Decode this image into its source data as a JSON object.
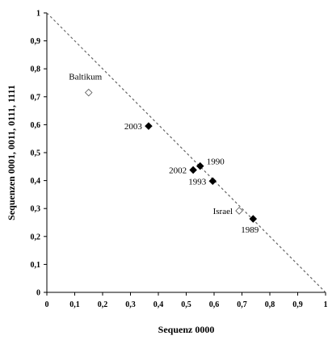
{
  "chart_data": {
    "type": "scatter",
    "xlabel": "Sequenz 0000",
    "ylabel": "Sequenzen 0001, 0011, 0111, 1111",
    "xlim": [
      0,
      1
    ],
    "ylim": [
      0,
      1
    ],
    "x_ticks": [
      "0",
      "0,1",
      "0,2",
      "0,3",
      "0,4",
      "0,5",
      "0,6",
      "0,7",
      "0,8",
      "0,9",
      "1"
    ],
    "y_ticks": [
      "0",
      "0,1",
      "0,2",
      "0,3",
      "0,4",
      "0,5",
      "0,6",
      "0,7",
      "0,8",
      "0,9",
      "1"
    ],
    "grid": false,
    "reference_line": {
      "style": "dashed",
      "from": [
        0,
        1
      ],
      "to": [
        1,
        0
      ]
    },
    "points": [
      {
        "label": "Baltikum",
        "x": 0.15,
        "y": 0.715,
        "marker": "open-diamond"
      },
      {
        "label": "2003",
        "x": 0.365,
        "y": 0.595,
        "marker": "filled-diamond"
      },
      {
        "label": "1990",
        "x": 0.55,
        "y": 0.452,
        "marker": "filled-diamond"
      },
      {
        "label": "2002",
        "x": 0.525,
        "y": 0.438,
        "marker": "filled-diamond"
      },
      {
        "label": "1993",
        "x": 0.595,
        "y": 0.398,
        "marker": "filled-diamond"
      },
      {
        "label": "Israel",
        "x": 0.69,
        "y": 0.292,
        "marker": "open-diamond"
      },
      {
        "label": "1989",
        "x": 0.74,
        "y": 0.263,
        "marker": "filled-diamond"
      }
    ],
    "label_positions": [
      "above-left",
      "left",
      "right",
      "left",
      "left",
      "left",
      "below-left"
    ],
    "colors": {
      "axis": "#000000",
      "marker_fill": "#000000",
      "open_marker_fill": "#ffffff",
      "reference_line": "#666666"
    }
  }
}
